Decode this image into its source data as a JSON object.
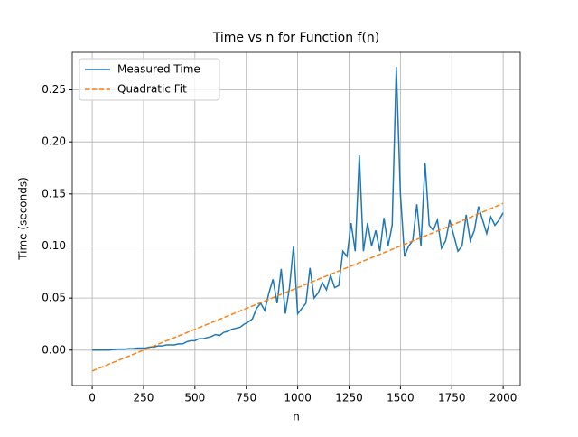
{
  "chart_data": {
    "type": "line",
    "title": "Time vs n for Function f(n)",
    "x_label": "n",
    "y_label": "Time (seconds)",
    "series": [
      {
        "name": "Measured Time",
        "color": "#1f77b4",
        "dash": "solid",
        "x": [
          0,
          20,
          40,
          60,
          80,
          100,
          120,
          140,
          160,
          180,
          200,
          220,
          240,
          260,
          280,
          300,
          320,
          340,
          360,
          380,
          400,
          420,
          440,
          460,
          480,
          500,
          520,
          540,
          560,
          580,
          600,
          620,
          640,
          660,
          680,
          700,
          720,
          740,
          760,
          780,
          800,
          820,
          840,
          860,
          880,
          900,
          920,
          940,
          960,
          980,
          1000,
          1020,
          1040,
          1060,
          1080,
          1100,
          1120,
          1140,
          1160,
          1180,
          1200,
          1220,
          1240,
          1260,
          1280,
          1300,
          1320,
          1340,
          1360,
          1380,
          1400,
          1420,
          1440,
          1460,
          1480,
          1500,
          1520,
          1540,
          1560,
          1580,
          1600,
          1620,
          1640,
          1660,
          1680,
          1700,
          1720,
          1740,
          1760,
          1780,
          1800,
          1820,
          1840,
          1860,
          1880,
          1900,
          1920,
          1940,
          1960,
          1980,
          2000
        ],
        "values": [
          0,
          0,
          0,
          0,
          0,
          0.0005,
          0.001,
          0.001,
          0.001,
          0.0015,
          0.0015,
          0.002,
          0.002,
          0.002,
          0.003,
          0.003,
          0.004,
          0.004,
          0.005,
          0.005,
          0.005,
          0.006,
          0.006,
          0.008,
          0.009,
          0.009,
          0.011,
          0.011,
          0.012,
          0.013,
          0.015,
          0.014,
          0.017,
          0.018,
          0.02,
          0.021,
          0.022,
          0.025,
          0.027,
          0.03,
          0.04,
          0.045,
          0.038,
          0.055,
          0.068,
          0.045,
          0.078,
          0.035,
          0.06,
          0.1,
          0.035,
          0.04,
          0.045,
          0.079,
          0.05,
          0.055,
          0.065,
          0.058,
          0.072,
          0.06,
          0.062,
          0.095,
          0.09,
          0.122,
          0.095,
          0.187,
          0.095,
          0.122,
          0.1,
          0.115,
          0.095,
          0.127,
          0.1,
          0.12,
          0.272,
          0.15,
          0.09,
          0.1,
          0.105,
          0.14,
          0.1,
          0.18,
          0.12,
          0.115,
          0.125,
          0.098,
          0.105,
          0.125,
          0.11,
          0.095,
          0.1,
          0.13,
          0.105,
          0.115,
          0.138,
          0.125,
          0.112,
          0.128,
          0.12,
          0.125,
          0.132
        ]
      },
      {
        "name": "Quadratic Fit",
        "color": "#ff7f0e",
        "dash": "dashed",
        "x": [
          0,
          250,
          500,
          750,
          1000,
          1250,
          1500,
          1750,
          2000
        ],
        "values": [
          -0.02,
          0.0,
          0.02,
          0.04,
          0.06,
          0.08,
          0.1,
          0.12,
          0.141
        ]
      }
    ],
    "xlim": [
      -97,
      2083
    ],
    "ylim": [
      -0.034,
      0.286
    ],
    "xticks": [
      0,
      250,
      500,
      750,
      1000,
      1250,
      1500,
      1750,
      2000
    ],
    "yticks": [
      {
        "value": 0,
        "label": "0.00"
      },
      {
        "value": 0.05,
        "label": "0.05"
      },
      {
        "value": 0.1,
        "label": "0.10"
      },
      {
        "value": 0.15,
        "label": "0.15"
      },
      {
        "value": 0.2,
        "label": "0.20"
      },
      {
        "value": 0.25,
        "label": "0.25"
      }
    ],
    "grid": true,
    "legend": "upper-left"
  }
}
